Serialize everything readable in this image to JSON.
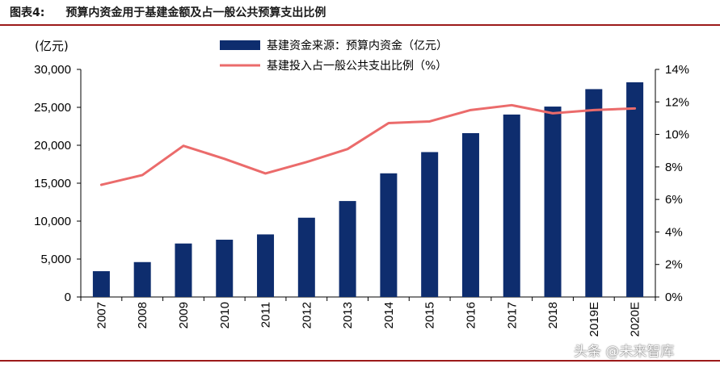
{
  "header": {
    "figure_label": "图表4:",
    "title": "预算内资金用于基建金额及占一般公共预算支出比例"
  },
  "watermark": "头条 @未来智库",
  "colors": {
    "bar": "#0e2d6e",
    "line": "#eb6b6b",
    "rule": "#9c1a1a"
  },
  "chart_data": {
    "type": "bar",
    "categories": [
      "2007",
      "2008",
      "2009",
      "2010",
      "2011",
      "2012",
      "2013",
      "2014",
      "2015",
      "2016",
      "2017",
      "2018",
      "2019E",
      "2020E"
    ],
    "left_axis": {
      "unit_label": "(亿元)",
      "ylim": [
        0,
        30000
      ],
      "ticks": [
        "0",
        "5,000",
        "10,000",
        "15,000",
        "20,000",
        "25,000",
        "30,000"
      ]
    },
    "right_axis": {
      "ylim": [
        0,
        14
      ],
      "ticks": [
        "0%",
        "2%",
        "4%",
        "6%",
        "8%",
        "10%",
        "12%",
        "14%"
      ]
    },
    "series": [
      {
        "name": "基建资金来源：预算内资金（亿元）",
        "kind": "bar",
        "axis": "left",
        "values": [
          3400,
          4600,
          7050,
          7550,
          8250,
          10450,
          12650,
          16300,
          19100,
          21600,
          24050,
          25100,
          27400,
          28300
        ]
      },
      {
        "name": "基建投入占一般公共支出比例（%）",
        "kind": "line",
        "axis": "right",
        "values": [
          6.9,
          7.5,
          9.3,
          8.5,
          7.6,
          8.3,
          9.1,
          10.7,
          10.8,
          11.5,
          11.8,
          11.3,
          11.5,
          11.6
        ]
      }
    ],
    "grid": false,
    "legend_position": "top-center"
  }
}
